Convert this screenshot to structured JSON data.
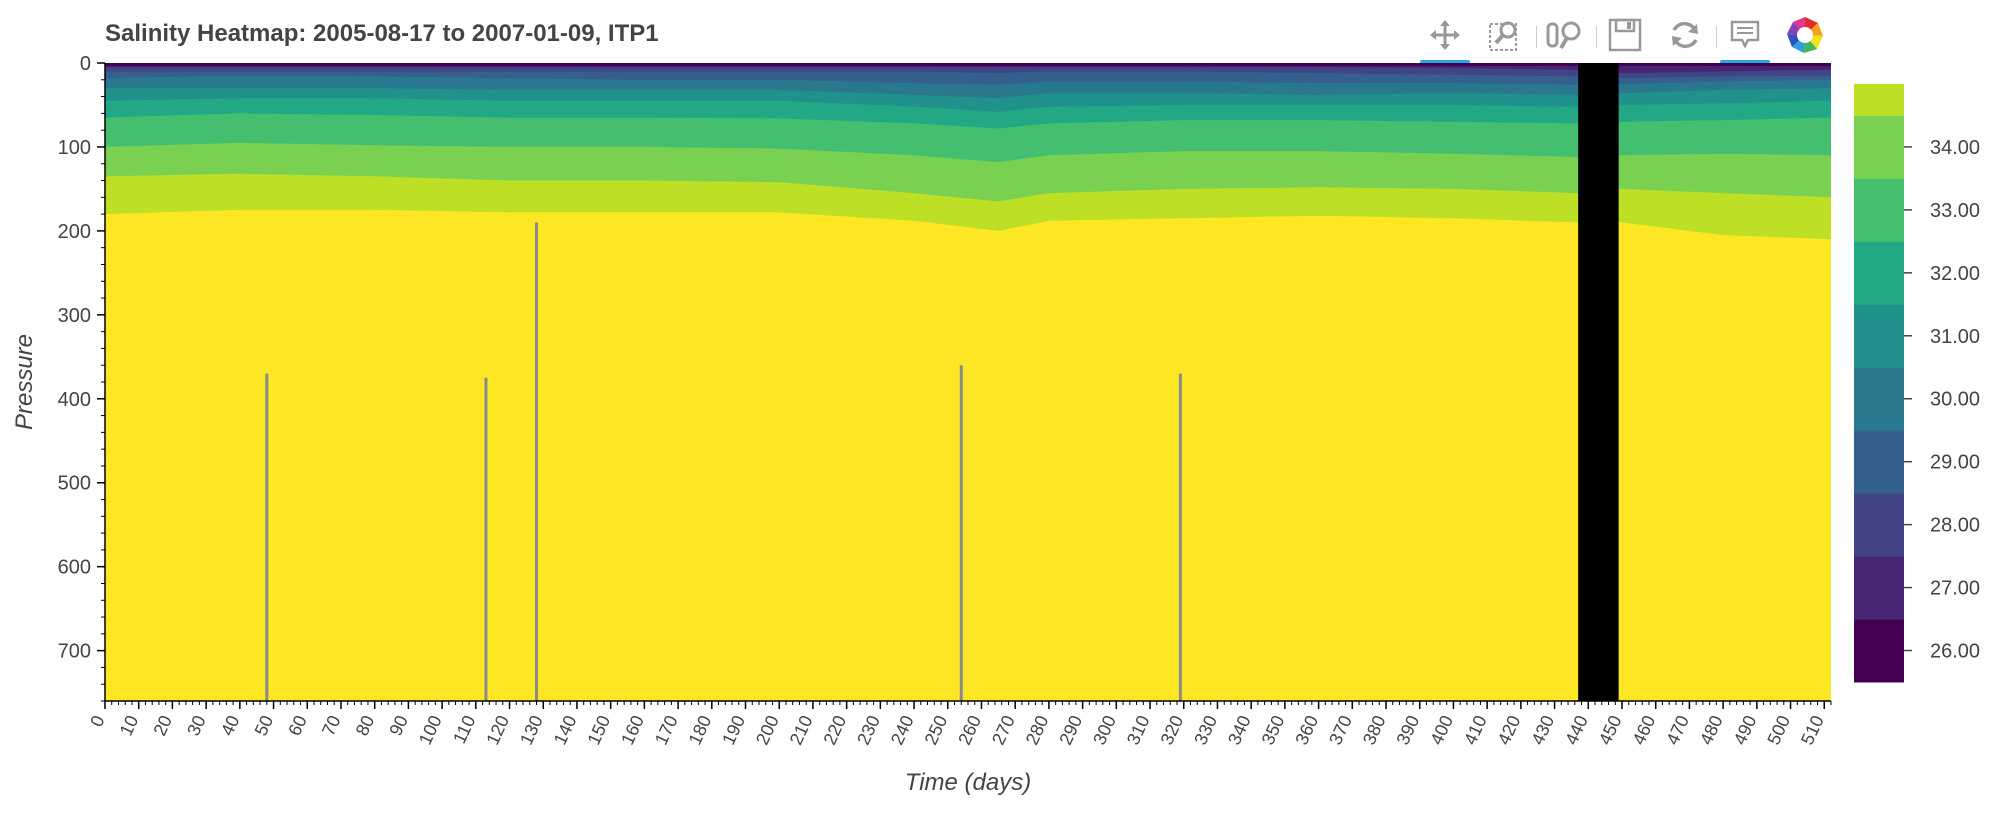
{
  "title": "Salinity Heatmap: 2005-08-17 to 2007-01-09, ITP1",
  "toolbar": {
    "tools": [
      {
        "name": "pan-tool",
        "icon": "pan-icon",
        "active": true
      },
      {
        "name": "box-zoom-tool",
        "icon": "box-zoom-icon",
        "active": false
      },
      {
        "name": "wheel-zoom-tool",
        "icon": "wheel-zoom-icon",
        "active": false
      },
      {
        "name": "save-tool",
        "icon": "save-icon",
        "active": false
      },
      {
        "name": "reset-tool",
        "icon": "reset-icon",
        "active": false
      },
      {
        "name": "hover-tool",
        "icon": "hover-icon",
        "active": true
      },
      {
        "name": "bokeh-logo",
        "icon": "bokeh-logo-icon",
        "active": false
      }
    ]
  },
  "chart_data": {
    "type": "heatmap",
    "title": "Salinity Heatmap: 2005-08-17 to 2007-01-09, ITP1",
    "xlabel": "Time (days)",
    "ylabel": "Pressure",
    "xlim": [
      0,
      512
    ],
    "ylim": [
      760,
      0
    ],
    "x_ticks": [
      0,
      10,
      20,
      30,
      40,
      50,
      60,
      70,
      80,
      90,
      100,
      110,
      120,
      130,
      140,
      150,
      160,
      170,
      180,
      190,
      200,
      210,
      220,
      230,
      240,
      250,
      260,
      270,
      280,
      290,
      300,
      310,
      320,
      330,
      340,
      350,
      360,
      370,
      380,
      390,
      400,
      410,
      420,
      430,
      440,
      450,
      460,
      470,
      480,
      490,
      500,
      510
    ],
    "y_ticks": [
      0,
      100,
      200,
      300,
      400,
      500,
      600,
      700
    ],
    "colorbar": {
      "range": [
        25.5,
        35.0
      ],
      "levels": [
        25.5,
        26.5,
        27.5,
        28.5,
        29.5,
        30.5,
        31.5,
        32.5,
        33.5,
        34.5,
        35.0
      ],
      "colors": [
        "#440154",
        "#482475",
        "#414487",
        "#355f8d",
        "#2a788e",
        "#21918c",
        "#22a884",
        "#44bf70",
        "#7ad151",
        "#bddf26",
        "#fde725"
      ],
      "tick_labels": [
        "26.00",
        "27.00",
        "28.00",
        "29.00",
        "30.00",
        "31.00",
        "32.00",
        "33.00",
        "34.00"
      ],
      "tick_values": [
        26,
        27,
        28,
        29,
        30,
        31,
        32,
        33,
        34
      ]
    },
    "isohaline_depths": {
      "x": [
        0,
        40,
        80,
        120,
        160,
        200,
        240,
        265,
        280,
        320,
        360,
        400,
        437,
        450,
        480,
        512
      ],
      "s27": [
        5,
        5,
        5,
        5,
        5,
        5,
        5,
        5,
        5,
        5,
        5,
        6,
        8,
        12,
        10,
        8
      ],
      "s28": [
        10,
        10,
        10,
        10,
        10,
        10,
        10,
        12,
        10,
        10,
        12,
        14,
        16,
        18,
        16,
        15
      ],
      "s29": [
        18,
        15,
        16,
        18,
        20,
        20,
        24,
        26,
        22,
        22,
        24,
        24,
        26,
        25,
        22,
        20
      ],
      "s30": [
        30,
        30,
        30,
        32,
        32,
        32,
        38,
        42,
        36,
        36,
        38,
        36,
        38,
        36,
        32,
        30
      ],
      "s31": [
        45,
        42,
        42,
        45,
        45,
        45,
        52,
        58,
        52,
        50,
        50,
        50,
        52,
        50,
        48,
        45
      ],
      "s32": [
        65,
        60,
        62,
        65,
        65,
        66,
        72,
        78,
        72,
        68,
        68,
        70,
        72,
        70,
        68,
        65
      ],
      "s33": [
        100,
        95,
        98,
        100,
        100,
        102,
        110,
        118,
        110,
        105,
        105,
        108,
        112,
        110,
        108,
        110
      ],
      "s34": [
        135,
        132,
        135,
        140,
        140,
        142,
        155,
        165,
        155,
        150,
        148,
        150,
        155,
        150,
        155,
        160
      ],
      "s34_5": [
        180,
        175,
        175,
        178,
        178,
        178,
        188,
        200,
        188,
        185,
        182,
        185,
        190,
        190,
        205,
        210
      ]
    },
    "missing_data_band": {
      "x_start": 437,
      "x_end": 449,
      "color": "#000000"
    },
    "gray_profile_lines": [
      {
        "x": 48,
        "p_top": 370,
        "p_bottom": 760
      },
      {
        "x": 113,
        "p_top": 375,
        "p_bottom": 760
      },
      {
        "x": 128,
        "p_top": 190,
        "p_bottom": 760
      },
      {
        "x": 254,
        "p_top": 360,
        "p_bottom": 760
      },
      {
        "x": 319,
        "p_top": 370,
        "p_bottom": 760
      }
    ]
  }
}
